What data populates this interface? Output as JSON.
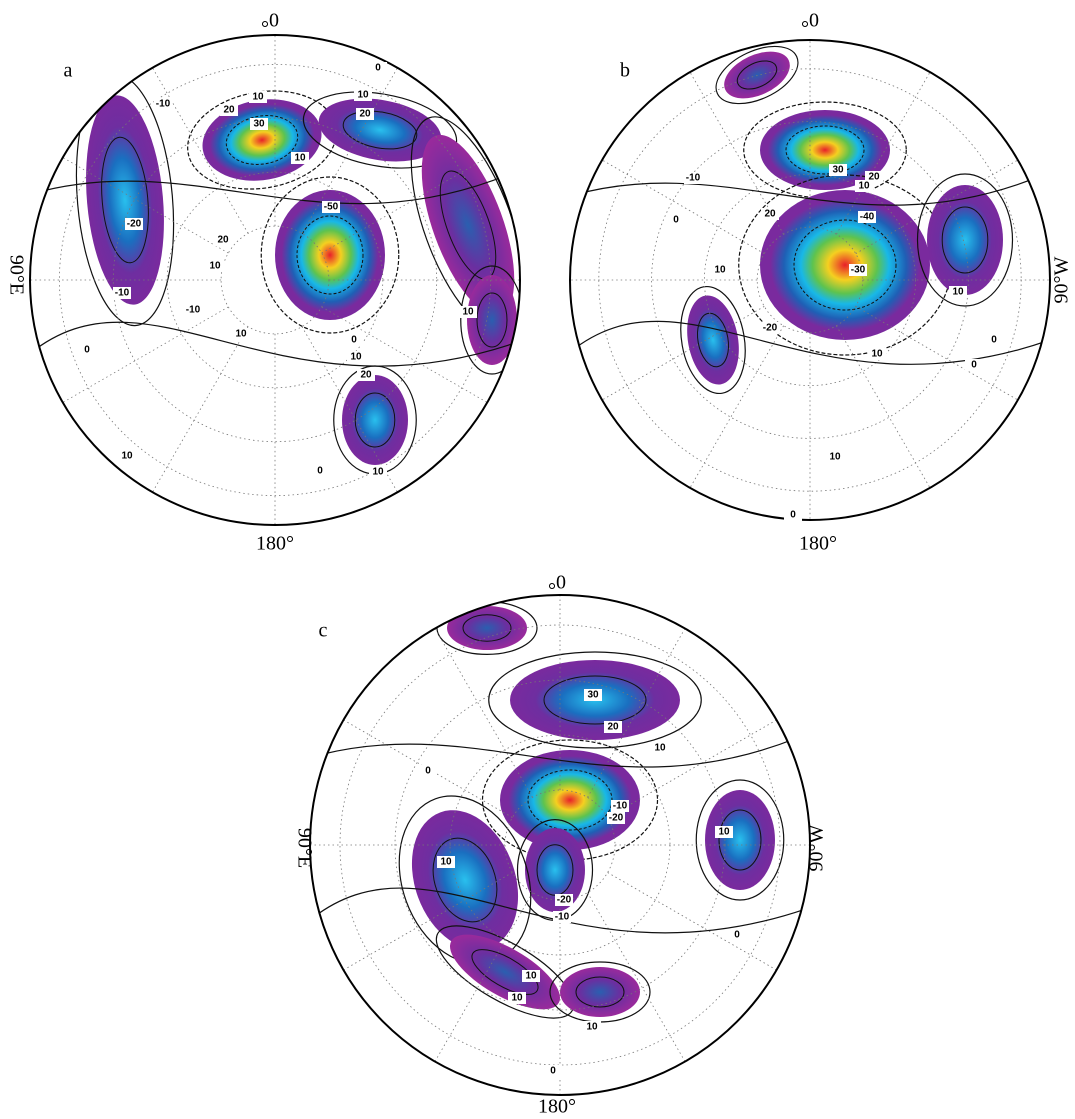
{
  "panels": [
    {
      "label": "a",
      "top": "0°",
      "bottom": "180°",
      "left": "90°E",
      "contour_labels": [
        -10,
        10,
        20,
        30,
        10,
        20,
        0,
        -20,
        -10,
        20,
        10,
        -50,
        10,
        -10,
        10,
        0,
        10,
        0,
        20,
        10,
        10,
        0,
        10
      ]
    },
    {
      "label": "b",
      "top": "0°",
      "bottom": "180°",
      "right": "90°W",
      "contour_labels": [
        -10,
        30,
        20,
        10,
        20,
        -40,
        -30,
        -20,
        10,
        0,
        10,
        10,
        0,
        0,
        10,
        0
      ]
    },
    {
      "label": "c",
      "top": "0°",
      "bottom": "180°",
      "left": "90°E",
      "right": "90°W",
      "contour_labels": [
        30,
        20,
        10,
        0,
        -10,
        -20,
        10,
        10,
        -20,
        -10,
        0,
        10,
        10,
        10,
        0
      ]
    }
  ]
}
